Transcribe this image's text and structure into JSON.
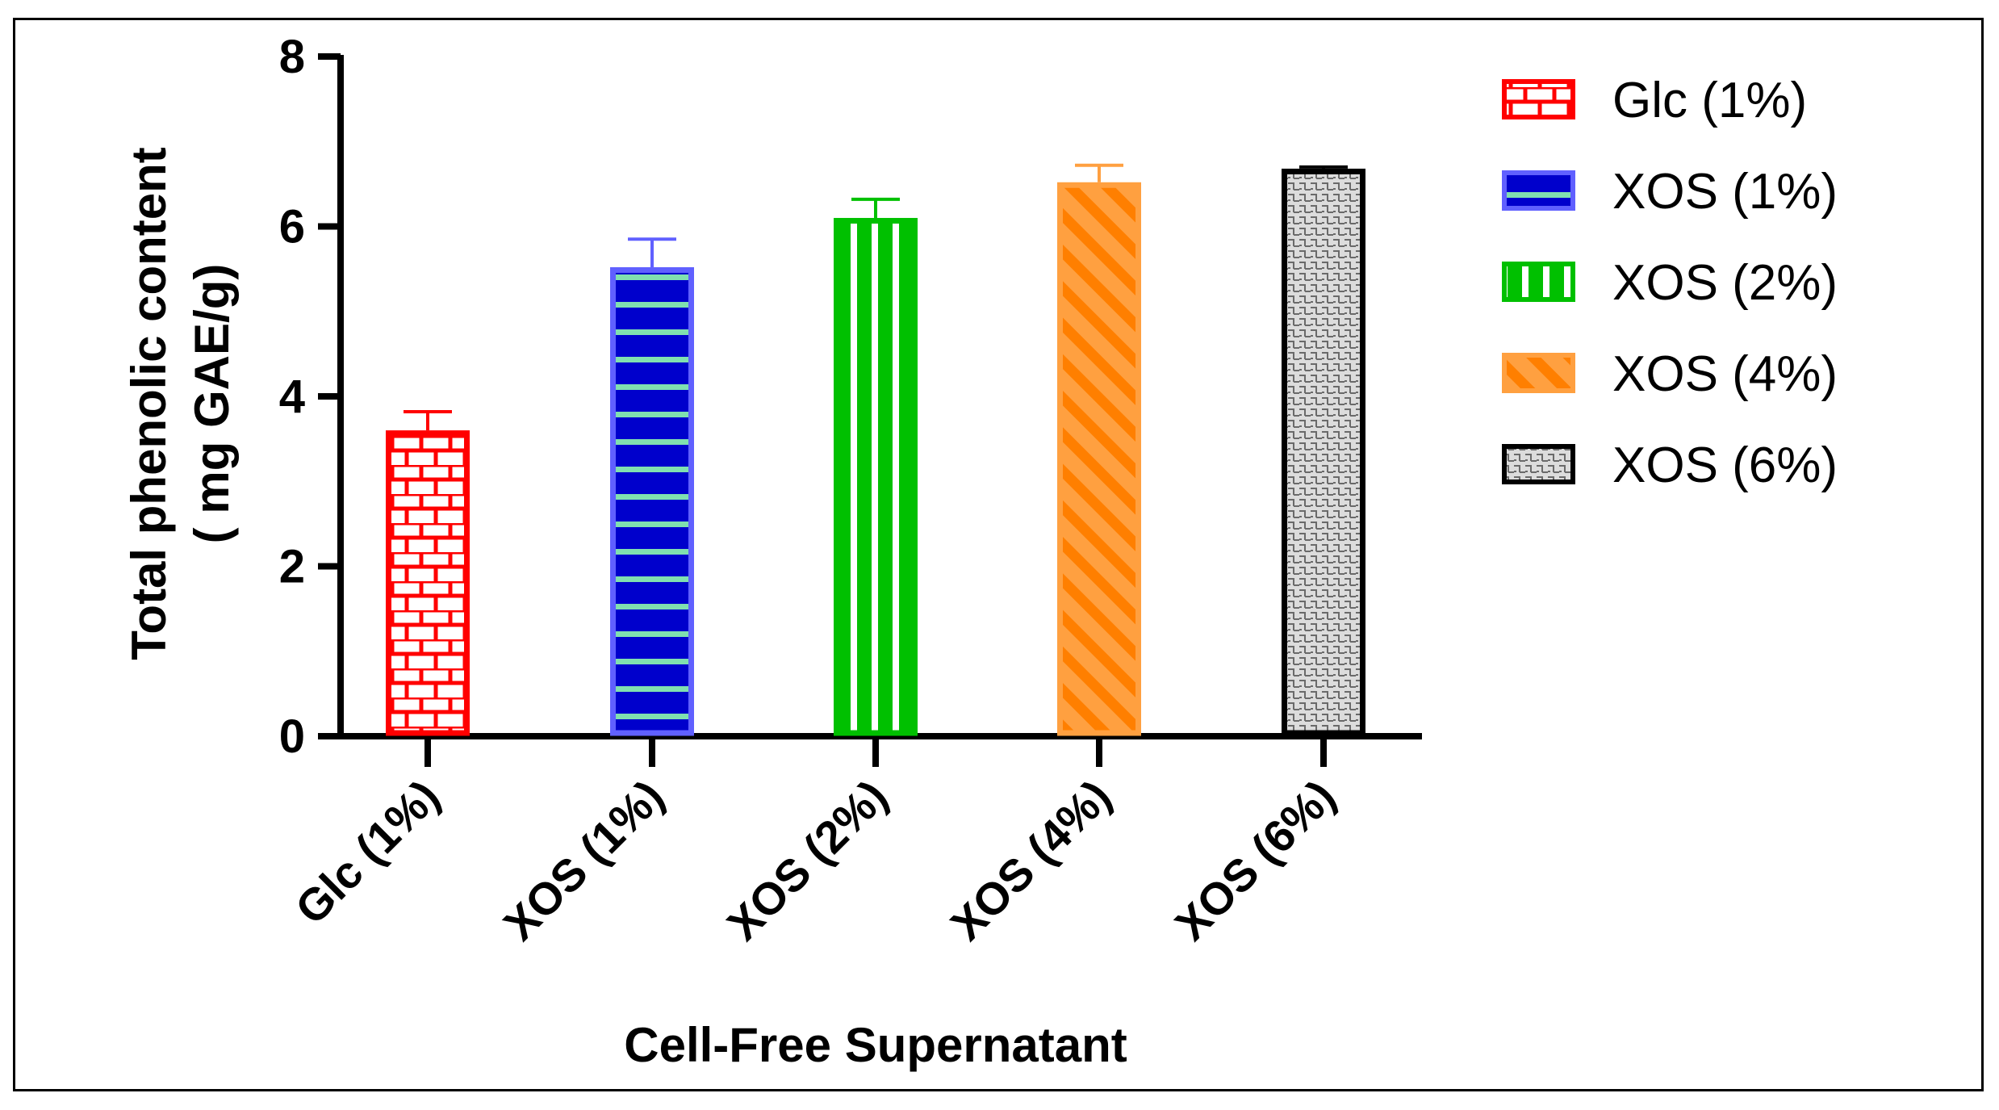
{
  "chart_data": {
    "type": "bar",
    "title": "",
    "xlabel": "Cell-Free Supernatant",
    "ylabel_line1": "Total phenolic content",
    "ylabel_line2": "( mg GAE/g)",
    "ylim": [
      0,
      8
    ],
    "yticks": [
      "0",
      "2",
      "4",
      "6",
      "8"
    ],
    "categories": [
      "Glc (1%)",
      "XOS (1%)",
      "XOS (2%)",
      "XOS (4%)",
      "XOS (6%)"
    ],
    "values": [
      3.6,
      5.52,
      6.1,
      6.52,
      6.68
    ],
    "errors": [
      0.22,
      0.33,
      0.22,
      0.2,
      0.02
    ],
    "colors": [
      "#ff0000",
      "#3535d8",
      "#1fbf1f",
      "#ffa040",
      "#000000"
    ],
    "legend": {
      "position": "right",
      "entries": [
        "Glc (1%)",
        "XOS (1%)",
        "XOS (2%)",
        "XOS (4%)",
        "XOS (6%)"
      ]
    }
  }
}
